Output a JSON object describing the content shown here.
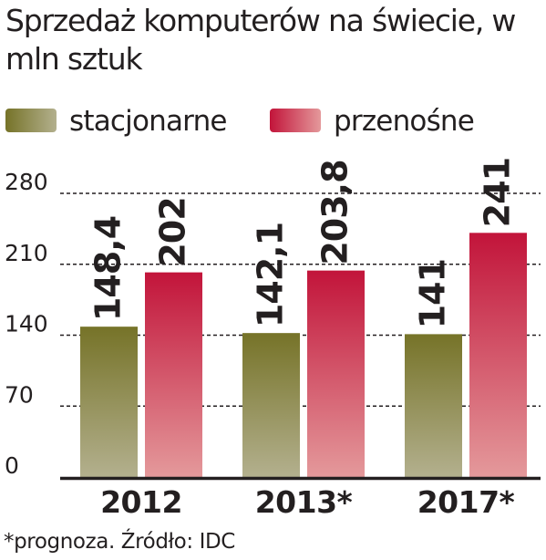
{
  "chart_data": {
    "type": "bar",
    "title": "Sprzedaż komputerów na świecie, w mln sztuk",
    "categories": [
      "2012",
      "2013*",
      "2017*"
    ],
    "series": [
      {
        "name": "stacjonarne",
        "values": [
          148.4,
          142.1,
          141
        ],
        "value_labels": [
          "148,4",
          "142,1",
          "141"
        ],
        "color_top": "#767328",
        "color_bottom": "#b3b08e"
      },
      {
        "name": "przenośne",
        "values": [
          202,
          203.8,
          241
        ],
        "value_labels": [
          "202",
          "203,8",
          "241"
        ],
        "color_top": "#c2143a",
        "color_bottom": "#e4999b"
      }
    ],
    "yticks": [
      0,
      70,
      140,
      210,
      280
    ],
    "ylim": [
      0,
      280
    ],
    "grid": true,
    "legend_position": "top-left",
    "xlabel": "",
    "ylabel": ""
  },
  "footnote": "*prognoza. Źródło: IDC"
}
